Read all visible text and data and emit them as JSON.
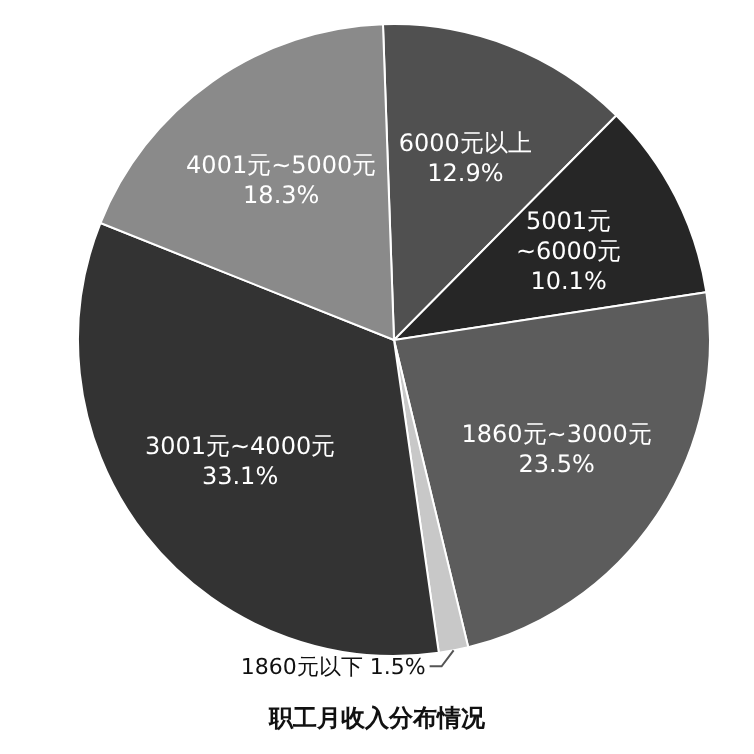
{
  "chart_data": {
    "type": "pie",
    "title": "职工月收入分布情况",
    "categories": [
      "6000元以上",
      "5001元~6000元",
      "1860元~3000元",
      "1860元以下",
      "3001元~4000元",
      "4001元~5000元"
    ],
    "values": [
      12.9,
      10.1,
      23.5,
      1.5,
      33.1,
      18.3
    ],
    "value_labels": [
      "12.9%",
      "10.1%",
      "23.5%",
      "1.5%",
      "33.1%",
      "18.3%"
    ],
    "colors": [
      "#505050",
      "#262626",
      "#5c5c5c",
      "#c8c8c8",
      "#333333",
      "#8a8a8a"
    ]
  }
}
